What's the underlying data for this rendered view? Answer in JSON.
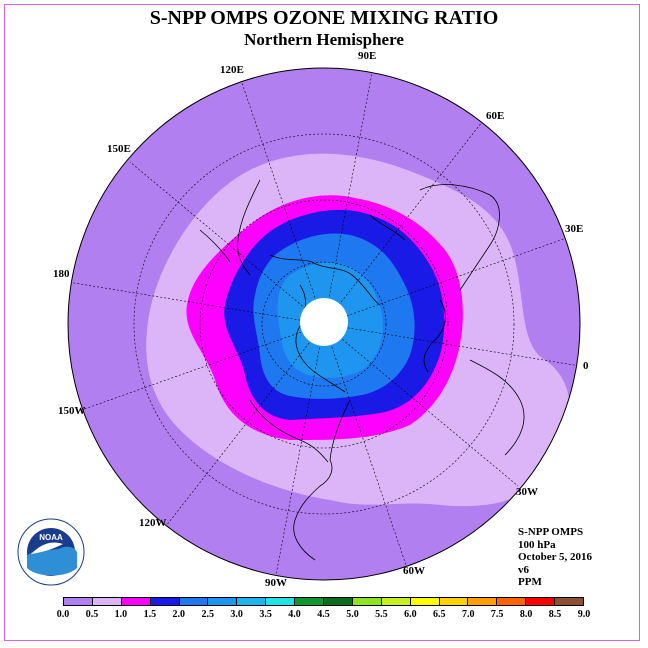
{
  "title": "S-NPP OMPS OZONE MIXING RATIO",
  "subtitle": "Northern Hemisphere",
  "longitude_labels": {
    "l90e": "90E",
    "l60e": "60E",
    "l30e": "30E",
    "l0": "0",
    "l30w": "30W",
    "l60w": "60W",
    "l90w": "90W",
    "l120w": "120W",
    "l150w": "150W",
    "l180": "180",
    "l150e": "150E",
    "l120e": "120E"
  },
  "info": {
    "line1": "S-NPP OMPS",
    "line2": "100 hPa",
    "line3": "October 5, 2016",
    "line4": "v6",
    "line5": "PPM"
  },
  "logo_text": "NOAA",
  "colorbar": {
    "colors": [
      "#b27ff0",
      "#dcb4f8",
      "#ff00ff",
      "#1a1ae6",
      "#1e78f0",
      "#1e96f0",
      "#1eb4f0",
      "#1ee6e6",
      "#0f9632",
      "#0a6e1e",
      "#8ce61e",
      "#c8f01e",
      "#ffff00",
      "#ffd200",
      "#ffa000",
      "#ff6400",
      "#ff0000",
      "#8c5032"
    ],
    "ticks": [
      "0.0",
      "0.5",
      "1.0",
      "1.5",
      "2.0",
      "2.5",
      "3.0",
      "3.5",
      "4.0",
      "4.5",
      "5.0",
      "5.5",
      "6.0",
      "6.5",
      "7.0",
      "7.5",
      "8.0",
      "8.5",
      "9.0"
    ]
  },
  "map": {
    "projection": "north polar stereographic",
    "contour_colors": {
      "outer": "#b27ff0",
      "band_0_5": "#dcb4f8",
      "band_1_0": "#ff00ff",
      "band_1_5": "#1a1ae6",
      "band_2_0": "#1e78f0",
      "band_2_5": "#1e96f0",
      "missing": "#ffffff"
    }
  }
}
